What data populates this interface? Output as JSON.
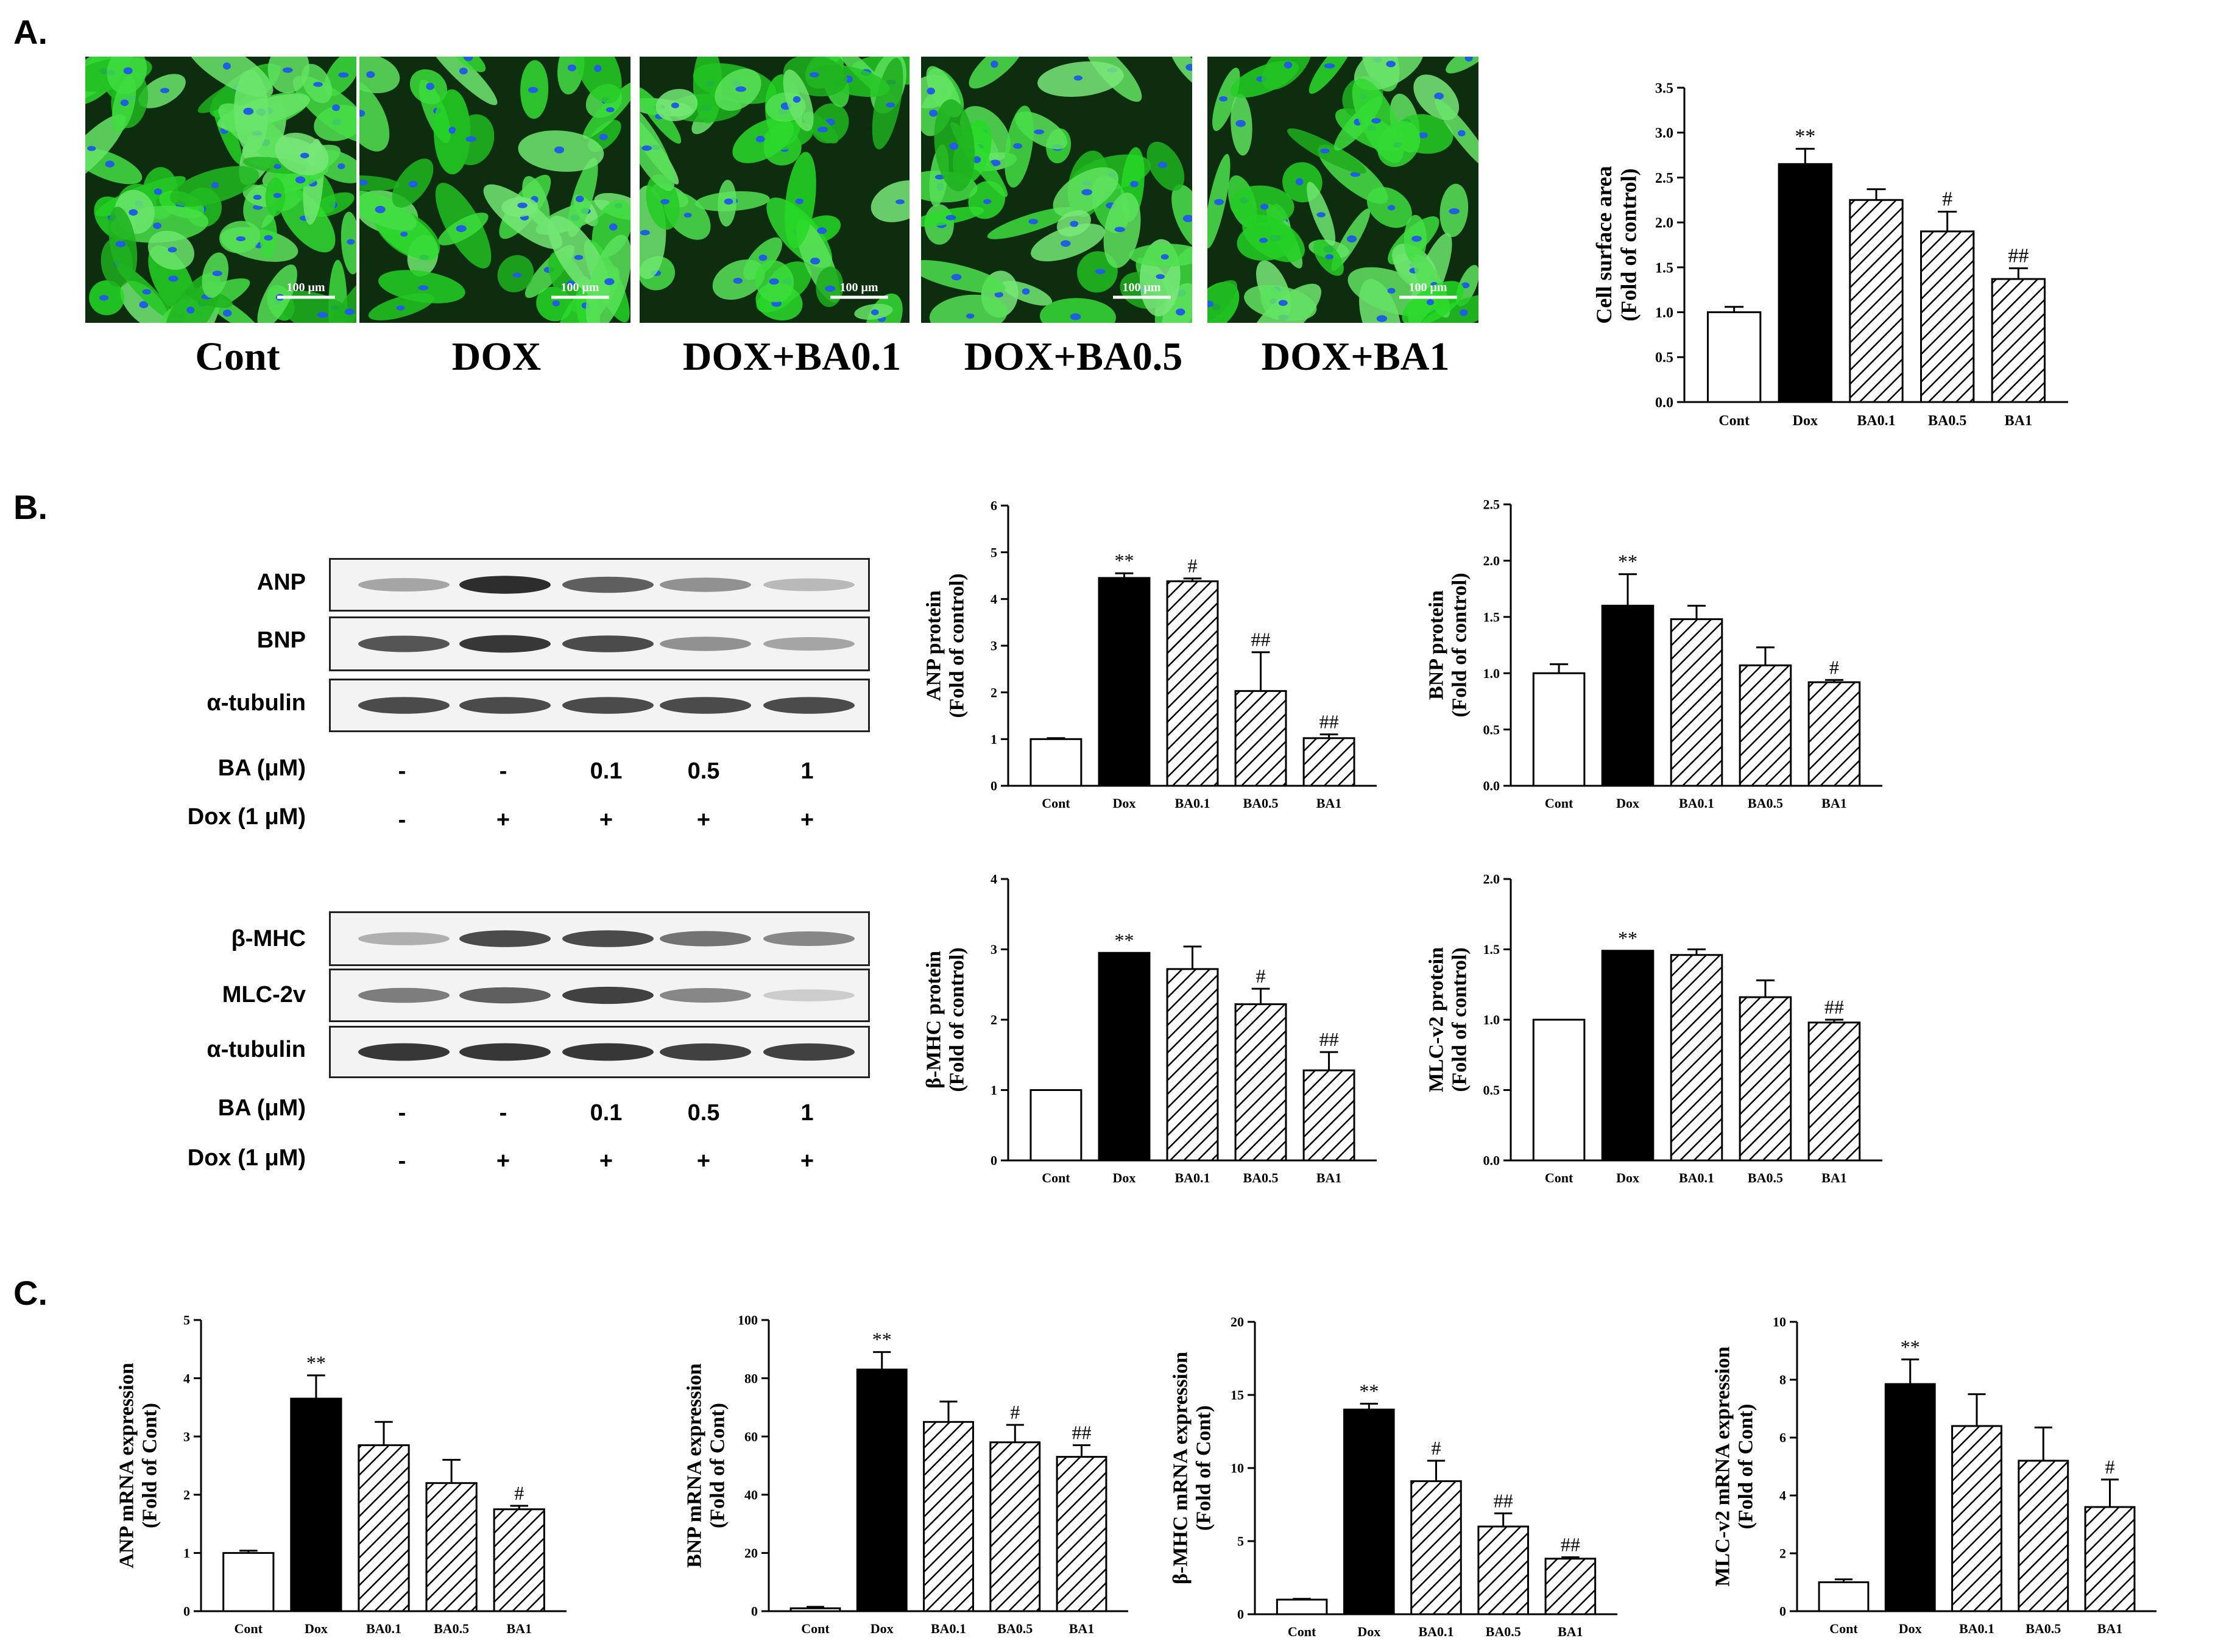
{
  "panels": {
    "a": "A.",
    "b": "B.",
    "c": "C."
  },
  "images": {
    "scale_bar": "100 μm",
    "captions": [
      "Cont",
      "DOX",
      "DOX+BA0.1",
      "DOX+BA0.5",
      "DOX+BA1"
    ],
    "fluorescence_colors": {
      "actin": "#2fd12f",
      "nuclei": "#1f5fe0"
    }
  },
  "blots": {
    "top": {
      "bands": [
        "ANP",
        "BNP",
        "α-tubulin"
      ],
      "ba_label": "BA (μM)",
      "dox_label": "Dox (1 μM)",
      "ba_values": [
        "-",
        "-",
        "0.1",
        "0.5",
        "1"
      ],
      "dox_values": [
        "-",
        "+",
        "+",
        "+",
        "+"
      ]
    },
    "bottom": {
      "bands": [
        "β-MHC",
        "MLC-2v",
        "α-tubulin"
      ],
      "ba_label": "BA (μM)",
      "dox_label": "Dox (1 μM)",
      "ba_values": [
        "-",
        "-",
        "0.1",
        "0.5",
        "1"
      ],
      "dox_values": [
        "-",
        "+",
        "+",
        "+",
        "+"
      ]
    }
  },
  "chart_data": [
    {
      "id": "surface",
      "type": "bar",
      "categories": [
        "Cont",
        "Dox",
        "BA0.1",
        "BA0.5",
        "BA1"
      ],
      "values": [
        1.0,
        2.65,
        2.25,
        1.9,
        1.37
      ],
      "errors": [
        0.06,
        0.17,
        0.12,
        0.22,
        0.12
      ],
      "annotations": [
        "",
        "**",
        "",
        "#",
        "##"
      ],
      "ylabel": [
        "Cell surface area",
        "(Fold of control)"
      ],
      "ylim": [
        0,
        3.5
      ],
      "ticks": [
        "0.0",
        "0.5",
        "1.0",
        "1.5",
        "2.0",
        "2.5",
        "3.0",
        "3.5"
      ],
      "fills": [
        "white",
        "black",
        "hatch",
        "hatch",
        "hatch"
      ]
    },
    {
      "id": "anp_protein",
      "type": "bar",
      "categories": [
        "Cont",
        "Dox",
        "BA0.1",
        "BA0.5",
        "BA1"
      ],
      "values": [
        1.0,
        4.45,
        4.38,
        2.03,
        1.02
      ],
      "errors": [
        0.02,
        0.1,
        0.06,
        0.83,
        0.08
      ],
      "annotations": [
        "",
        "**",
        "#",
        "##",
        "##"
      ],
      "ylabel": [
        "ANP protein",
        "(Fold of control)"
      ],
      "ylim": [
        0,
        6
      ],
      "ticks": [
        "0",
        "1",
        "2",
        "3",
        "4",
        "5",
        "6"
      ],
      "fills": [
        "white",
        "black",
        "hatch",
        "hatch",
        "hatch"
      ]
    },
    {
      "id": "bnp_protein",
      "type": "bar",
      "categories": [
        "Cont",
        "Dox",
        "BA0.1",
        "BA0.5",
        "BA1"
      ],
      "values": [
        1.0,
        1.6,
        1.48,
        1.07,
        0.92
      ],
      "errors": [
        0.08,
        0.28,
        0.12,
        0.16,
        0.02
      ],
      "annotations": [
        "",
        "**",
        "",
        "",
        "#"
      ],
      "ylabel": [
        "BNP protein",
        "(Fold of control)"
      ],
      "ylim": [
        0,
        2.5
      ],
      "ticks": [
        "0.0",
        "0.5",
        "1.0",
        "1.5",
        "2.0",
        "2.5"
      ],
      "fills": [
        "white",
        "black",
        "hatch",
        "hatch",
        "hatch"
      ]
    },
    {
      "id": "bmhc_protein",
      "type": "bar",
      "categories": [
        "Cont",
        "Dox",
        "BA0.1",
        "BA0.5",
        "BA1"
      ],
      "values": [
        1.0,
        2.95,
        2.72,
        2.22,
        1.28
      ],
      "errors": [
        0.0,
        0.0,
        0.32,
        0.22,
        0.26
      ],
      "annotations": [
        "",
        "**",
        "",
        "#",
        "##"
      ],
      "ylabel": [
        "β-MHC protein",
        "(Fold of control)"
      ],
      "ylim": [
        0,
        4
      ],
      "ticks": [
        "0",
        "1",
        "2",
        "3",
        "4"
      ],
      "fills": [
        "white",
        "black",
        "hatch",
        "hatch",
        "hatch"
      ]
    },
    {
      "id": "mlc_protein",
      "type": "bar",
      "categories": [
        "Cont",
        "Dox",
        "BA0.1",
        "BA0.5",
        "BA1"
      ],
      "values": [
        1.0,
        1.49,
        1.46,
        1.16,
        0.98
      ],
      "errors": [
        0.0,
        0.0,
        0.04,
        0.12,
        0.02
      ],
      "annotations": [
        "",
        "**",
        "",
        "",
        "##"
      ],
      "ylabel": [
        "MLC-v2 protein",
        "(Fold of control)"
      ],
      "ylim": [
        0,
        2.0
      ],
      "ticks": [
        "0.0",
        "0.5",
        "1.0",
        "1.5",
        "2.0"
      ],
      "fills": [
        "white",
        "black",
        "hatch",
        "hatch",
        "hatch"
      ]
    },
    {
      "id": "anp_mrna",
      "type": "bar",
      "categories": [
        "Cont",
        "Dox",
        "BA0.1",
        "BA0.5",
        "BA1"
      ],
      "values": [
        1.0,
        3.65,
        2.85,
        2.2,
        1.75
      ],
      "errors": [
        0.04,
        0.4,
        0.4,
        0.4,
        0.06
      ],
      "annotations": [
        "",
        "**",
        "",
        "",
        "#"
      ],
      "ylabel": [
        "ANP mRNA expression",
        "(Fold of Cont)"
      ],
      "ylim": [
        0,
        5
      ],
      "ticks": [
        "0",
        "1",
        "2",
        "3",
        "4",
        "5"
      ],
      "fills": [
        "white",
        "black",
        "hatch",
        "hatch",
        "hatch"
      ]
    },
    {
      "id": "bnp_mrna",
      "type": "bar",
      "categories": [
        "Cont",
        "Dox",
        "BA0.1",
        "BA0.5",
        "BA1"
      ],
      "values": [
        1.0,
        83,
        65,
        58,
        53
      ],
      "errors": [
        0.5,
        6,
        7,
        6,
        4
      ],
      "annotations": [
        "",
        "**",
        "",
        "#",
        "##"
      ],
      "ylabel": [
        "BNP mRNA expression",
        "(Fold of Cont)"
      ],
      "ylim": [
        0,
        100
      ],
      "ticks": [
        "0",
        "20",
        "40",
        "60",
        "80",
        "100"
      ],
      "fills": [
        "white",
        "black",
        "hatch",
        "hatch",
        "hatch"
      ]
    },
    {
      "id": "bmhc_mrna",
      "type": "bar",
      "categories": [
        "Cont",
        "Dox",
        "BA0.1",
        "BA0.5",
        "BA1"
      ],
      "values": [
        1.0,
        14.0,
        9.1,
        6.0,
        3.8
      ],
      "errors": [
        0.05,
        0.4,
        1.4,
        0.9,
        0.1
      ],
      "annotations": [
        "",
        "**",
        "#",
        "##",
        "##"
      ],
      "ylabel": [
        "β-MHC mRNA expression",
        "(Fold of Cont)"
      ],
      "ylim": [
        0,
        20
      ],
      "ticks": [
        "0",
        "5",
        "10",
        "15",
        "20"
      ],
      "fills": [
        "white",
        "black",
        "hatch",
        "hatch",
        "hatch"
      ]
    },
    {
      "id": "mlc_mrna",
      "type": "bar",
      "categories": [
        "Cont",
        "Dox",
        "BA0.1",
        "BA0.5",
        "BA1"
      ],
      "values": [
        1.0,
        7.85,
        6.4,
        5.2,
        3.6
      ],
      "errors": [
        0.1,
        0.85,
        1.1,
        1.15,
        0.95
      ],
      "annotations": [
        "",
        "**",
        "",
        "",
        "#"
      ],
      "ylabel": [
        "MLC-v2 mRNA expression",
        "(Fold of Cont)"
      ],
      "ylim": [
        0,
        10
      ],
      "ticks": [
        "0",
        "2",
        "4",
        "6",
        "8",
        "10"
      ],
      "fills": [
        "white",
        "black",
        "hatch",
        "hatch",
        "hatch"
      ]
    }
  ]
}
